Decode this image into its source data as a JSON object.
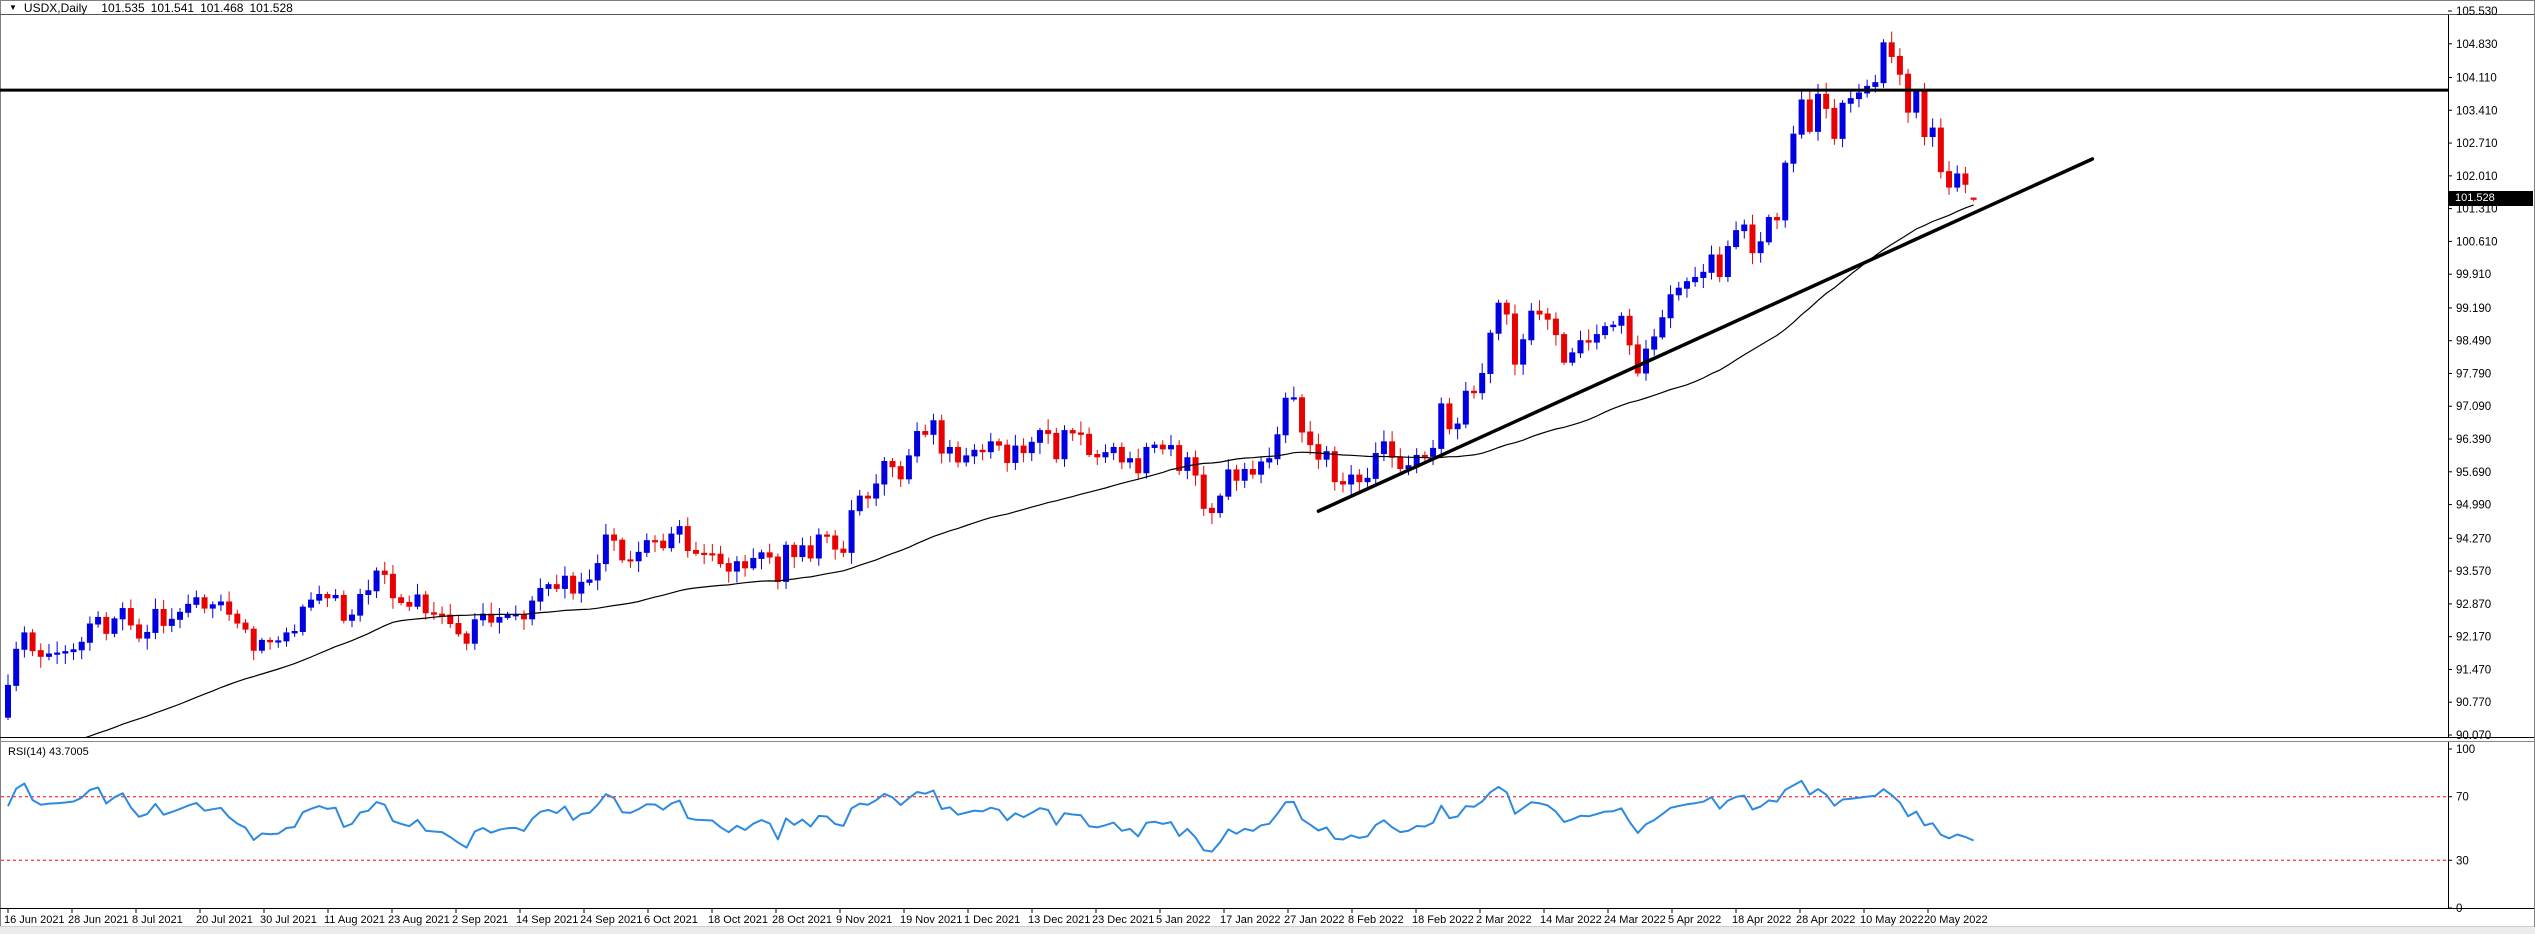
{
  "header": {
    "dropdown": "▼",
    "symbol_period": "USDX,Daily",
    "open": "101.535",
    "high": "101.541",
    "low": "101.468",
    "close": "101.528"
  },
  "price_tag": "101.528",
  "rsi_label": "RSI(14) 43.7005",
  "colors": {
    "bull": "#0000e0",
    "bear": "#e80202",
    "ma_line": "#000000",
    "trend_line": "#000000",
    "resistance_line": "#000000",
    "rsi_line": "#2e8ae0",
    "rsi_level": "#ff0000",
    "axis_text": "#000000",
    "frame": "#7f7f7f",
    "price_tag_bg": "#000000",
    "price_tag_text": "#ffffff"
  },
  "chart_data": {
    "type": "candlestick",
    "symbol": "USDX",
    "timeframe": "Daily",
    "grid": false,
    "legend": false,
    "last_quote": {
      "open": 101.535,
      "high": 101.541,
      "low": 101.468,
      "close": 101.528
    },
    "ylim": [
      90.07,
      105.53
    ],
    "y_axis_ticks": [
      "105.530",
      "104.830",
      "104.110",
      "103.410",
      "102.710",
      "102.010",
      "101.310",
      "100.610",
      "99.910",
      "99.190",
      "98.490",
      "97.790",
      "97.090",
      "96.390",
      "95.690",
      "94.990",
      "94.270",
      "93.570",
      "92.870",
      "92.170",
      "91.470",
      "90.770",
      "90.070"
    ],
    "current_price_label": "101.528",
    "x_axis_labels": [
      "16 Jun 2021",
      "28 Jun 2021",
      "8 Jul 2021",
      "20 Jul 2021",
      "30 Jul 2021",
      "11 Aug 2021",
      "23 Aug 2021",
      "2 Sep 2021",
      "14 Sep 2021",
      "24 Sep 2021",
      "6 Oct 2021",
      "18 Oct 2021",
      "28 Oct 2021",
      "9 Nov 2021",
      "19 Nov 2021",
      "1 Dec 2021",
      "13 Dec 2021",
      "23 Dec 2021",
      "5 Jan 2022",
      "17 Jan 2022",
      "27 Jan 2022",
      "8 Feb 2022",
      "18 Feb 2022",
      "2 Mar 2022",
      "14 Mar 2022",
      "24 Mar 2022",
      "5 Apr 2022",
      "18 Apr 2022",
      "28 Apr 2022",
      "10 May 2022",
      "20 May 2022"
    ],
    "first_open": 90.45,
    "closes": [
      91.13,
      91.9,
      92.25,
      91.87,
      91.75,
      91.8,
      91.82,
      91.85,
      91.89,
      92.05,
      92.44,
      92.58,
      92.24,
      92.55,
      92.77,
      92.42,
      92.14,
      92.26,
      92.75,
      92.41,
      92.54,
      92.69,
      92.86,
      93.0,
      92.78,
      92.85,
      92.91,
      92.65,
      92.46,
      92.33,
      91.88,
      92.09,
      92.06,
      92.08,
      92.25,
      92.28,
      92.8,
      92.95,
      93.07,
      93.0,
      93.05,
      92.52,
      92.63,
      93.07,
      93.15,
      93.57,
      93.5,
      93.0,
      92.9,
      92.82,
      93.06,
      92.68,
      92.65,
      92.63,
      92.45,
      92.23,
      92.03,
      92.53,
      92.65,
      92.48,
      92.58,
      92.63,
      92.64,
      92.55,
      92.93,
      93.2,
      93.28,
      93.2,
      93.46,
      93.1,
      93.33,
      93.38,
      93.73,
      94.34,
      94.23,
      93.81,
      93.79,
      93.97,
      94.22,
      94.21,
      94.07,
      94.36,
      94.52,
      94.01,
      93.95,
      93.94,
      93.93,
      93.73,
      93.57,
      93.77,
      93.64,
      93.84,
      93.96,
      93.87,
      93.35,
      94.12,
      93.88,
      94.11,
      93.85,
      94.34,
      94.32,
      94.04,
      93.97,
      94.86,
      95.17,
      95.13,
      95.43,
      95.91,
      95.8,
      95.54,
      96.03,
      96.55,
      96.49,
      96.78,
      96.09,
      96.21,
      95.9,
      96.03,
      96.15,
      96.12,
      96.33,
      96.26,
      95.89,
      96.24,
      96.1,
      96.32,
      96.57,
      96.51,
      95.97,
      96.57,
      96.52,
      96.49,
      96.06,
      96.01,
      96.1,
      96.21,
      95.9,
      95.97,
      95.67,
      96.21,
      96.26,
      96.18,
      96.25,
      95.72,
      95.99,
      95.62,
      94.91,
      94.82,
      95.17,
      95.73,
      95.51,
      95.74,
      95.64,
      95.9,
      95.97,
      96.48,
      97.26,
      97.27,
      96.54,
      96.27,
      95.96,
      96.12,
      95.48,
      95.43,
      95.62,
      95.48,
      95.55,
      96.08,
      96.33,
      96.0,
      95.76,
      95.82,
      96.04,
      96.02,
      96.19,
      97.14,
      96.61,
      96.71,
      97.41,
      97.38,
      97.79,
      98.65,
      99.29,
      99.06,
      97.99,
      98.51,
      99.12,
      99.06,
      98.95,
      98.62,
      98.03,
      98.23,
      98.49,
      98.46,
      98.62,
      98.79,
      98.82,
      99.01,
      98.4,
      97.8,
      98.31,
      98.57,
      98.98,
      99.47,
      99.61,
      99.75,
      99.84,
      99.95,
      100.32,
      99.86,
      100.5,
      100.84,
      100.96,
      100.37,
      100.6,
      101.12,
      101.07,
      102.28,
      102.9,
      103.63,
      102.96,
      103.75,
      103.45,
      102.81,
      103.56,
      103.66,
      103.78,
      103.92,
      104.0,
      104.85,
      104.56,
      104.18,
      103.37,
      103.81,
      102.85,
      103.03,
      102.1,
      101.77,
      102.05,
      101.83,
      101.528
    ],
    "overlays": {
      "resistance_line": {
        "price": 103.84,
        "style": "solid-black-thick",
        "full_width": true
      },
      "trendline": {
        "from": {
          "day_index": 160,
          "price": 94.85
        },
        "to": {
          "day_index": 254.5,
          "price": 102.37
        },
        "style": "solid-black-thick"
      },
      "moving_average": {
        "style": "thin-black",
        "window": 48,
        "pre_chart_seed": 89.5
      }
    },
    "indicator": {
      "name": "RSI",
      "period": 14,
      "label": "RSI(14) 43.7005",
      "current": 43.7005,
      "levels": [
        70,
        30
      ],
      "scale": [
        0,
        100
      ],
      "scale_ticks_shown": [
        "100",
        "70",
        "30",
        "0"
      ]
    }
  }
}
